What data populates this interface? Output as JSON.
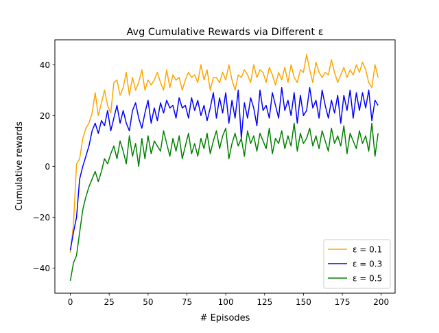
{
  "chart_data": {
    "type": "line",
    "title": "Avg Cumulative Rewards via Different  ε",
    "xlabel": "# Episodes",
    "ylabel": "Cumulative rewards",
    "xlim": [
      -9.95,
      208.95
    ],
    "ylim": [
      -49.9,
      49.8
    ],
    "xticks": [
      0,
      25,
      50,
      75,
      100,
      125,
      150,
      175,
      200
    ],
    "yticks": [
      -40,
      -20,
      0,
      20,
      40
    ],
    "grid": false,
    "legend_position": "lower-right",
    "legend": [
      {
        "label": "ε = 0.1",
        "color": "#ffa500"
      },
      {
        "label": "ε = 0.3",
        "color": "#0000ff"
      },
      {
        "label": "ε = 0.5",
        "color": "#008000"
      }
    ],
    "x": [
      0,
      2,
      4,
      6,
      8,
      10,
      12,
      14,
      16,
      18,
      20,
      22,
      24,
      26,
      28,
      30,
      32,
      34,
      36,
      38,
      40,
      42,
      44,
      46,
      48,
      50,
      52,
      54,
      56,
      58,
      60,
      62,
      64,
      66,
      68,
      70,
      72,
      74,
      76,
      78,
      80,
      82,
      84,
      86,
      88,
      90,
      92,
      94,
      96,
      98,
      100,
      102,
      104,
      106,
      108,
      110,
      112,
      114,
      116,
      118,
      120,
      122,
      124,
      126,
      128,
      130,
      132,
      134,
      136,
      138,
      140,
      142,
      144,
      146,
      148,
      150,
      152,
      154,
      156,
      158,
      160,
      162,
      164,
      166,
      168,
      170,
      172,
      174,
      176,
      178,
      180,
      182,
      184,
      186,
      188,
      190,
      192,
      194,
      196,
      198
    ],
    "series": [
      {
        "name": "ε = 0.1",
        "color": "#ffa500",
        "values": [
          -34,
          -23,
          1,
          3,
          11,
          15,
          17,
          21,
          29,
          20,
          25,
          30,
          24,
          21,
          33,
          34,
          28,
          31,
          37,
          28,
          35,
          30,
          33,
          38,
          30,
          34,
          32,
          34,
          37,
          33,
          30,
          38,
          31,
          36,
          34,
          35,
          30,
          34,
          37,
          35,
          36,
          33,
          40,
          34,
          38,
          30,
          35,
          35,
          33,
          37,
          34,
          40,
          34,
          30,
          36,
          35,
          38,
          36,
          33,
          40,
          35,
          38,
          37,
          33,
          39,
          36,
          32,
          37,
          34,
          39,
          33,
          40,
          35,
          33,
          38,
          37,
          44,
          38,
          33,
          41,
          37,
          35,
          37,
          36,
          42,
          37,
          33,
          36,
          39,
          35,
          38,
          36,
          40,
          37,
          41,
          38,
          33,
          31,
          40,
          35
        ]
      },
      {
        "name": "ε = 0.3",
        "color": "#0000ff",
        "values": [
          -33,
          -26,
          -20,
          -5,
          0,
          4,
          8,
          14,
          17,
          13,
          18,
          16,
          22,
          14,
          19,
          24,
          17,
          22,
          17,
          14,
          22,
          25,
          19,
          15,
          21,
          26,
          17,
          23,
          18,
          25,
          21,
          26,
          23,
          24,
          19,
          27,
          23,
          24,
          19,
          27,
          22,
          26,
          20,
          24,
          18,
          23,
          29,
          19,
          27,
          21,
          29,
          17,
          26,
          19,
          30,
          11,
          25,
          19,
          27,
          23,
          16,
          30,
          22,
          24,
          19,
          29,
          24,
          19,
          31,
          22,
          26,
          20,
          29,
          17,
          28,
          20,
          22,
          31,
          23,
          26,
          19,
          30,
          24,
          19,
          26,
          21,
          28,
          17,
          28,
          22,
          30,
          19,
          29,
          22,
          29,
          23,
          30,
          18,
          26,
          24
        ]
      },
      {
        "name": "ε = 0.5",
        "color": "#008000",
        "values": [
          -45,
          -38,
          -35,
          -26,
          -17,
          -12,
          -8,
          -5,
          -2,
          -6,
          -2,
          3,
          1,
          5,
          8,
          3,
          10,
          6,
          1,
          12,
          4,
          9,
          0,
          11,
          3,
          12,
          5,
          10,
          8,
          6,
          14,
          9,
          4,
          11,
          6,
          12,
          3,
          8,
          13,
          5,
          9,
          4,
          11,
          7,
          13,
          5,
          10,
          14,
          7,
          12,
          15,
          3,
          9,
          13,
          8,
          11,
          4,
          14,
          9,
          12,
          6,
          13,
          10,
          7,
          15,
          5,
          11,
          9,
          14,
          7,
          12,
          8,
          17,
          6,
          13,
          9,
          11,
          15,
          8,
          12,
          7,
          14,
          10,
          6,
          15,
          9,
          12,
          8,
          16,
          5,
          13,
          10,
          7,
          14,
          9,
          12,
          6,
          17,
          4,
          13
        ]
      }
    ]
  }
}
